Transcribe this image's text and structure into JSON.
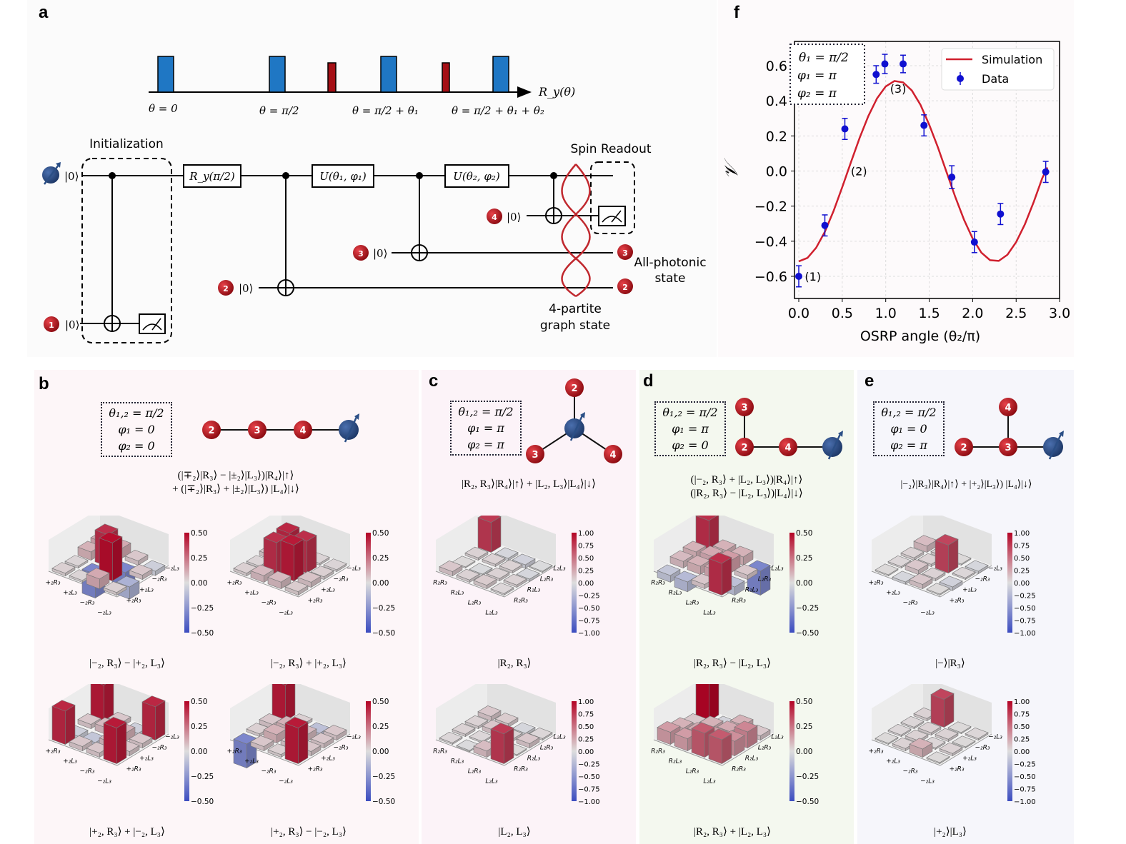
{
  "panel_labels": {
    "a": "a",
    "b": "b",
    "c": "c",
    "d": "d",
    "e": "e",
    "f": "f"
  },
  "panel_a": {
    "pulse_axis_label": "R_y(θ)",
    "pulse_labels": [
      "θ = 0",
      "θ = π/2",
      "θ = π/2 + θ₁",
      "θ = π/2 + θ₁ + θ₂"
    ],
    "initialization_label": "Initialization",
    "spin_readout_label": "Spin Readout",
    "gates": {
      "ry": "R_y(π/2)",
      "u1": "U(θ₁, φ₁)",
      "u2": "U(θ₂, φ₂)"
    },
    "ket_zero": "|0⟩",
    "photon_numbers": [
      "1",
      "2",
      "3",
      "4"
    ],
    "all_photonic_label": [
      "All-photonic",
      "state"
    ],
    "graph_state_label": [
      "4-partite",
      "graph state"
    ],
    "colors": {
      "pulse_blue": "#1f77c4",
      "pulse_red": "#a50f15",
      "photon": "#b3121c",
      "spin": "#2b4f86",
      "rope": "#c0282e"
    }
  },
  "panel_b": {
    "params": [
      "θ₁,₂ = π/2",
      "φ₁ = 0",
      "φ₂ = 0"
    ],
    "nodes": [
      "2",
      "3",
      "4"
    ],
    "state": [
      "(|∓₂⟩|R₃⟩ − |±₂⟩|L₃⟩)|R₄⟩|↑⟩",
      "+ (|∓₂⟩|R₃⟩ + |±₂⟩|L₃⟩) |L₄⟩|↓⟩"
    ]
  },
  "panel_c": {
    "params": [
      "θ₁,₂ = π/2",
      "φ₁ = π",
      "φ₂ = π"
    ],
    "nodes": [
      "2",
      "3",
      "4"
    ],
    "state": [
      "|R₂, R₃⟩|R₄⟩|↑⟩ + |L₂, L₃⟩|L₄⟩|↓⟩"
    ]
  },
  "panel_d": {
    "params": [
      "θ₁,₂ = π/2",
      "φ₁ = π",
      "φ₂ = 0"
    ],
    "nodes": [
      "3",
      "2",
      "4"
    ],
    "state": [
      "(|−₂, R₃⟩ + |L₂, L₃⟩)|R₄⟩|↑⟩",
      "(|R₂, R₃⟩ − |L₂, L₃⟩)|L₄⟩|↓⟩"
    ]
  },
  "panel_e": {
    "params": [
      "θ₁,₂ = π/2",
      "φ₁ = 0",
      "φ₂ = π"
    ],
    "nodes": [
      "4",
      "2",
      "3"
    ],
    "state": [
      "|−₂⟩|R₃⟩|R₄⟩|↑⟩ +  |+₂⟩|L₃⟩) |L₄⟩|↓⟩"
    ]
  },
  "density_plots": [
    {
      "panel": "b",
      "caption": "|−₂, R₃⟩ − |+₂, L₃⟩",
      "ticks": [
        "0.50",
        "0.25",
        "0.00",
        "−0.25",
        "−0.50"
      ],
      "range": 0.5,
      "labels": [
        "+₂R₃",
        "+₂L₃",
        "−₂R₃",
        "−₂L₃"
      ],
      "matrix": [
        [
          0.12,
          0.1,
          0.02,
          0.03
        ],
        [
          0.12,
          0.4,
          -0.3,
          0.02
        ],
        [
          0.05,
          -0.3,
          0.48,
          0.12
        ],
        [
          -0.05,
          0.05,
          -0.15,
          0.03
        ]
      ]
    },
    {
      "panel": "b",
      "caption": "|−₂, R₃⟩ + |+₂, L₃⟩",
      "ticks": [
        "0.50",
        "0.25",
        "0.00",
        "−0.25",
        "−0.50"
      ],
      "range": 0.5,
      "labels": [
        "+₂R₃",
        "+₂L₃",
        "−₂R₃",
        "−₂L₃"
      ],
      "matrix": [
        [
          0.1,
          0.05,
          0.02,
          0.03
        ],
        [
          0.03,
          0.42,
          0.4,
          0.08
        ],
        [
          0.02,
          0.4,
          0.45,
          0.08
        ],
        [
          0.02,
          0.03,
          0.06,
          0.04
        ]
      ]
    },
    {
      "panel": "b",
      "caption": "|+₂, R₃⟩ + |−₂, L₃⟩",
      "ticks": [
        "0.50",
        "0.25",
        "0.00",
        "−0.25",
        "−0.50"
      ],
      "range": 0.5,
      "labels": [
        "+₂R₃",
        "+₂L₃",
        "−₂R₃",
        "−₂L₃"
      ],
      "matrix": [
        [
          0.45,
          0.05,
          -0.05,
          0.42
        ],
        [
          0.05,
          0.08,
          -0.08,
          0.05
        ],
        [
          -0.05,
          0.1,
          0.08,
          0.05
        ],
        [
          0.42,
          0.05,
          0.05,
          0.45
        ]
      ]
    },
    {
      "panel": "b",
      "caption": "|+₂, R₃⟩ − |−₂, L₃⟩",
      "ticks": [
        "0.50",
        "0.25",
        "0.00",
        "−0.25",
        "−0.50"
      ],
      "range": 0.5,
      "labels": [
        "+₂R₃",
        "+₂L₃",
        "−₂R₃",
        "−₂L₃"
      ],
      "matrix": [
        [
          0.45,
          0.05,
          0.03,
          -0.3
        ],
        [
          0.03,
          0.1,
          0.1,
          0.05
        ],
        [
          -0.1,
          0.08,
          0.05,
          0.03
        ],
        [
          0.05,
          0.05,
          0.05,
          0.45
        ]
      ]
    },
    {
      "panel": "c",
      "caption": "|R₂, R₃⟩",
      "ticks": [
        "1.00",
        "0.75",
        "0.50",
        "0.25",
        "0.00",
        "−0.25",
        "−0.50",
        "−0.75",
        "−1.00"
      ],
      "range": 1.0,
      "labels": [
        "R₂R₃",
        "R₂L₃",
        "L₂R₃",
        "L₂L₃"
      ],
      "matrix": [
        [
          0.75,
          0.05,
          0.02,
          0.1
        ],
        [
          -0.05,
          0.05,
          -0.03,
          0.05
        ],
        [
          -0.08,
          0.05,
          0.05,
          0.08
        ],
        [
          -0.02,
          -0.05,
          0.05,
          0.03
        ]
      ]
    },
    {
      "panel": "c",
      "caption": "|L₂, L₃⟩",
      "ticks": [
        "1.00",
        "0.75",
        "0.50",
        "0.25",
        "0.00",
        "−0.25",
        "−0.50",
        "−0.75",
        "−1.00"
      ],
      "range": 1.0,
      "labels": [
        "R₂R₃",
        "R₂L₃",
        "L₂R₃",
        "L₂L₃"
      ],
      "matrix": [
        [
          0.1,
          0.05,
          0.05,
          0.03
        ],
        [
          0.08,
          0.1,
          0.03,
          -0.02
        ],
        [
          -0.05,
          0.05,
          0.03,
          0.15
        ],
        [
          0.03,
          0.1,
          0.02,
          0.75
        ]
      ]
    },
    {
      "panel": "d",
      "caption": "|R₂, R₃⟩ − |L₂, L₃⟩",
      "ticks": [
        "0.50",
        "0.25",
        "0.00",
        "−0.25",
        "−0.50"
      ],
      "range": 0.5,
      "labels": [
        "R₂R₃",
        "R₂L₃",
        "L₂R₃",
        "L₂L₃"
      ],
      "matrix": [
        [
          0.4,
          0.1,
          0.08,
          -0.08
        ],
        [
          0.1,
          0.12,
          0.1,
          -0.12
        ],
        [
          0.1,
          0.15,
          0.12,
          0.05
        ],
        [
          -0.3,
          0.05,
          -0.1,
          0.4
        ]
      ]
    },
    {
      "panel": "d",
      "caption": "|R₂, R₃⟩ + |L₂, L₃⟩",
      "ticks": [
        "0.50",
        "0.25",
        "0.00",
        "−0.25",
        "−0.50"
      ],
      "range": 0.5,
      "labels": [
        "R₂R₃",
        "R₂L₃",
        "L₂R₃",
        "L₂L₃"
      ],
      "matrix": [
        [
          0.5,
          0.05,
          0.1,
          0.15
        ],
        [
          -0.03,
          0.1,
          0.12,
          0.15
        ],
        [
          0.1,
          0.12,
          0.15,
          0.3
        ],
        [
          0.05,
          0.2,
          0.18,
          0.3
        ]
      ]
    },
    {
      "panel": "e",
      "caption": "|−⟩|R₃⟩",
      "ticks": [
        "1.00",
        "0.75",
        "0.50",
        "0.25",
        "0.00",
        "−0.25",
        "−0.50",
        "−0.75",
        "−1.00"
      ],
      "range": 1.0,
      "labels": [
        "+₂R₃",
        "+₂L₃",
        "−₂R₃",
        "−₂L₃"
      ],
      "matrix": [
        [
          0.15,
          0.05,
          0.03,
          0.02
        ],
        [
          0.05,
          0.05,
          0.1,
          -0.05
        ],
        [
          0.02,
          0.7,
          0.05,
          0.1
        ],
        [
          -0.05,
          0.03,
          -0.08,
          0.02
        ]
      ]
    },
    {
      "panel": "e",
      "caption": "|+₂⟩|L₃⟩",
      "ticks": [
        "1.00",
        "0.75",
        "0.50",
        "0.25",
        "0.00",
        "−0.25",
        "−0.50",
        "−0.75",
        "−1.00"
      ],
      "range": 1.0,
      "labels": [
        "+₂R₃",
        "+₂L₃",
        "−₂R₃",
        "−₂L₃"
      ],
      "matrix": [
        [
          0.05,
          0.03,
          0.03,
          0.02
        ],
        [
          0.7,
          0.05,
          0.05,
          0.05
        ],
        [
          0.02,
          0.05,
          0.03,
          0.2
        ],
        [
          0.03,
          0.02,
          0.05,
          0.02
        ]
      ]
    }
  ],
  "chart_data": {
    "type": "scatter",
    "title": "",
    "xlabel": "OSRP angle (θ₂/π)",
    "ylabel": "𝒱",
    "xlim": [
      -0.05,
      3.0
    ],
    "ylim": [
      -0.73,
      0.74
    ],
    "xticks": [
      "0.0",
      "0.5",
      "1.0",
      "1.5",
      "2.0",
      "2.5",
      "3.0"
    ],
    "yticks": [
      "0.6",
      "0.4",
      "0.2",
      "0.0",
      "−0.2",
      "−0.4",
      "−0.6"
    ],
    "grid": true,
    "legend_position": "top-right",
    "params": [
      "θ₁ = π/2",
      "φ₁ = π",
      "φ₂ = π"
    ],
    "annotations": [
      {
        "text": "(1)",
        "x": 0.02,
        "y": -0.6
      },
      {
        "text": "(2)",
        "x": 0.55,
        "y": 0.0
      },
      {
        "text": "(3)",
        "x": 1.0,
        "y": 0.47
      }
    ],
    "series": [
      {
        "name": "Simulation",
        "type": "line",
        "color": "#d0202e",
        "x": [
          0,
          0.1,
          0.2,
          0.3,
          0.4,
          0.5,
          0.6,
          0.7,
          0.8,
          0.9,
          1.0,
          1.1,
          1.2,
          1.3,
          1.4,
          1.5,
          1.6,
          1.7,
          1.8,
          1.9,
          2.0,
          2.1,
          2.2,
          2.3,
          2.4,
          2.5,
          2.6,
          2.7,
          2.8,
          2.86
        ],
        "y": [
          -0.515,
          -0.495,
          -0.437,
          -0.346,
          -0.228,
          -0.092,
          0.05,
          0.189,
          0.313,
          0.414,
          0.482,
          0.513,
          0.505,
          0.459,
          0.377,
          0.264,
          0.135,
          -0.007,
          -0.148,
          -0.277,
          -0.385,
          -0.465,
          -0.508,
          -0.512,
          -0.477,
          -0.405,
          -0.304,
          -0.179,
          -0.041,
          0.02
        ]
      },
      {
        "name": "Data",
        "type": "errorbar",
        "color": "#1010d0",
        "x": [
          0.0,
          0.3,
          0.53,
          0.89,
          0.99,
          1.2,
          1.44,
          1.76,
          2.02,
          2.32,
          2.84
        ],
        "y": [
          -0.6,
          -0.31,
          0.24,
          0.55,
          0.61,
          0.61,
          0.26,
          -0.035,
          -0.405,
          -0.245,
          -0.005
        ],
        "err": [
          0.06,
          0.06,
          0.06,
          0.05,
          0.055,
          0.05,
          0.06,
          0.065,
          0.06,
          0.06,
          0.06
        ]
      }
    ]
  }
}
